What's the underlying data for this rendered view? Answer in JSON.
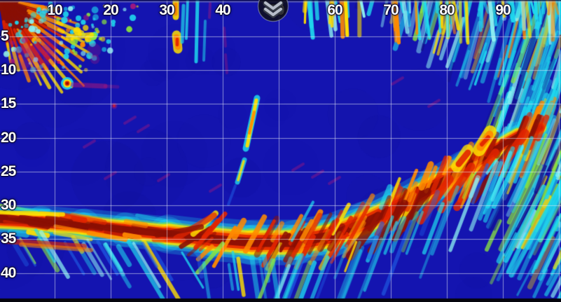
{
  "view": {
    "type": "sonar-echogram",
    "description": "Fishfinder sonar history screen: depth grid in feet, heavy bottom return band rising to the right, surface clutter burst in the top-left corner, dense bait/fish streak fan on the right side, a single suspended fish echo near 12, and a pull-down menu tab at top center."
  },
  "axes": {
    "top": {
      "labels": [
        "10",
        "20",
        "30",
        "40",
        "50",
        "60",
        "70",
        "80",
        "90"
      ]
    },
    "left": {
      "labels": [
        "5",
        "10",
        "15",
        "20",
        "25",
        "30",
        "35",
        "40"
      ]
    }
  },
  "menu": {
    "icon": "chevrons-down-icon",
    "label": "menu-pull-tab"
  },
  "palette": {
    "background": "#1414b0",
    "background_dark": "#0d0d8a",
    "grid": "rgba(235,238,248,0.55)",
    "label_text": "#ffffff",
    "label_outline": "#00001e",
    "weak_echo_magenta": "#b41878",
    "low_echo_blue": "#1f62e8",
    "echo_cyan": "#1fd8ee",
    "echo_pale_cyan": "#8df2f2",
    "echo_green": "#8ce83c",
    "echo_yellow": "#ffdf00",
    "echo_orange": "#ff8a00",
    "echo_red": "#e22500",
    "echo_dark_red": "#8a0f04",
    "icon_circle": "rgba(14,14,24,0.85)",
    "icon_chevron": "#b7bdc9",
    "top_line": "rgba(200,205,215,0.7)",
    "bottom_bar": "#05050e"
  }
}
